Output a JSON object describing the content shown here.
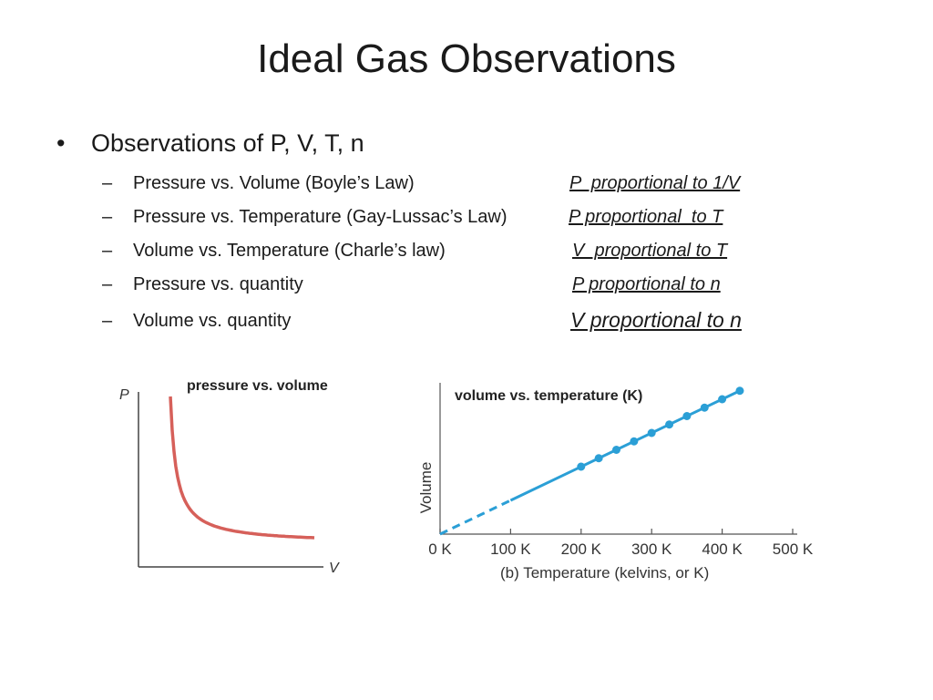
{
  "slide": {
    "title": "Ideal Gas Observations",
    "bullet_main": "Observations of P, V, T, n",
    "items": [
      {
        "law": "Pressure vs. Volume (Boyle’s Law)",
        "relation": "P  proportional to 1/V"
      },
      {
        "law": "Pressure vs. Temperature (Gay-Lussac’s Law)",
        "relation": "P proportional  to T"
      },
      {
        "law": "Volume vs. Temperature (Charle’s law)",
        "relation": "V  proportional to T"
      },
      {
        "law": "Pressure vs. quantity",
        "relation": "P proportional to n"
      },
      {
        "law": "Volume vs. quantity",
        "relation": "V proportional to n"
      }
    ]
  },
  "chart_data": [
    {
      "type": "line",
      "title": "pressure vs. volume",
      "xlabel": "V",
      "ylabel": "P",
      "series": [
        {
          "color": "#d6605a",
          "x": [
            0.2,
            0.3,
            0.4,
            0.5,
            0.7,
            1.0,
            1.3,
            1.6,
            2.0,
            2.5,
            3.0,
            3.5,
            4.0,
            4.5,
            5.0
          ],
          "y": [
            10.0,
            6.67,
            5.0,
            4.0,
            2.86,
            2.0,
            1.54,
            1.25,
            1.0,
            0.8,
            0.67,
            0.57,
            0.5,
            0.44,
            0.4
          ]
        }
      ]
    },
    {
      "type": "line",
      "title": "volume vs. temperature (K)",
      "xlabel": "(b) Temperature (kelvins, or K)",
      "ylabel": "Volume",
      "x_ticks": [
        "0 K",
        "100 K",
        "200 K",
        "300 K",
        "400 K",
        "500 K"
      ],
      "xlim": [
        0,
        500
      ],
      "series": [
        {
          "color": "#2b9fd6",
          "x": [
            200,
            225,
            250,
            275,
            300,
            325,
            350,
            375,
            400,
            425
          ],
          "y": [
            200,
            225,
            250,
            275,
            300,
            325,
            350,
            375,
            400,
            425
          ]
        }
      ],
      "extrapolated_to_zero": true
    }
  ]
}
